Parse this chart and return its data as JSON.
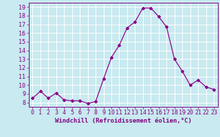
{
  "x": [
    0,
    1,
    2,
    3,
    4,
    5,
    6,
    7,
    8,
    9,
    10,
    11,
    12,
    13,
    14,
    15,
    16,
    17,
    18,
    19,
    20,
    21,
    22,
    23
  ],
  "y": [
    8.5,
    9.3,
    8.5,
    9.1,
    8.3,
    8.2,
    8.2,
    7.9,
    8.1,
    10.7,
    13.2,
    14.6,
    16.6,
    17.3,
    18.9,
    18.9,
    17.9,
    16.7,
    13.0,
    11.6,
    10.0,
    10.6,
    9.8,
    9.5
  ],
  "line_color": "#8b008b",
  "marker": "D",
  "marker_size": 2.0,
  "bg_color": "#c8eaf0",
  "grid_color": "#ffffff",
  "xlabel": "Windchill (Refroidissement éolien,°C)",
  "xlabel_fontsize": 6.5,
  "ylabel_ticks": [
    8,
    9,
    10,
    11,
    12,
    13,
    14,
    15,
    16,
    17,
    18,
    19
  ],
  "xtick_labels": [
    "0",
    "1",
    "2",
    "3",
    "4",
    "5",
    "6",
    "7",
    "8",
    "9",
    "10",
    "11",
    "12",
    "13",
    "14",
    "15",
    "16",
    "17",
    "18",
    "19",
    "20",
    "21",
    "22",
    "23"
  ],
  "ylim": [
    7.5,
    19.5
  ],
  "xlim": [
    -0.5,
    23.5
  ],
  "tick_fontsize": 6.0,
  "tick_color": "#800080",
  "spine_color": "#800080",
  "linewidth": 0.9
}
